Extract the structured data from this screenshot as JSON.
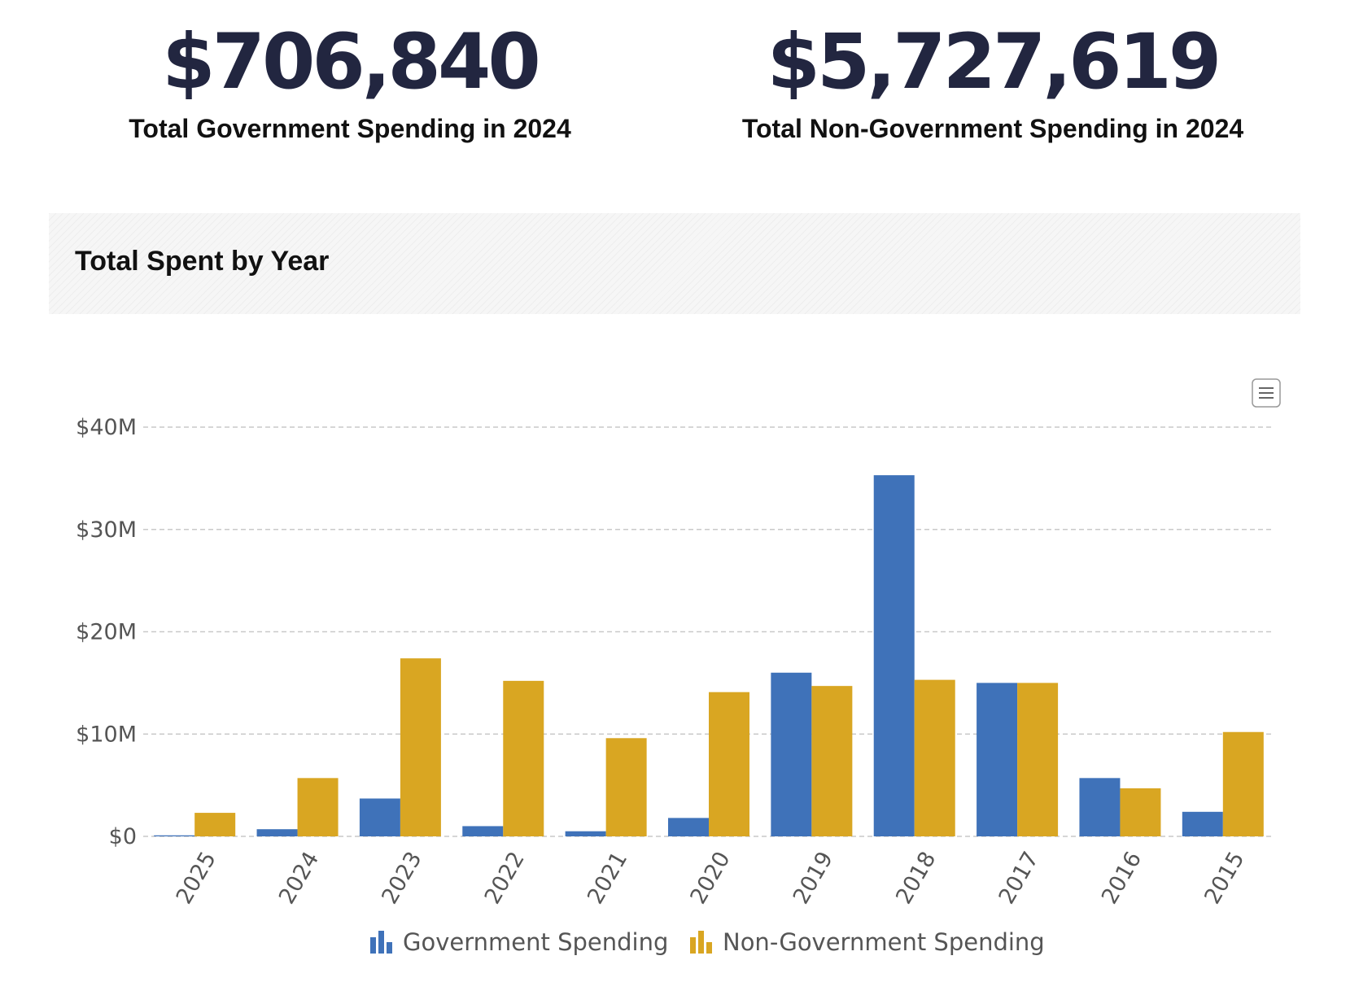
{
  "stats": {
    "government": {
      "value": "$706,840",
      "label": "Total Government Spending in 2024"
    },
    "non_government": {
      "value": "$5,727,619",
      "label": "Total Non-Government Spending in 2024"
    }
  },
  "panel": {
    "title": "Total Spent by Year",
    "menu_icon": "hamburger-menu-icon"
  },
  "colors": {
    "government": "#3F72B9",
    "non_government": "#D9A622",
    "axis_text": "#555555",
    "grid": "#c9c9c9"
  },
  "chart_data": {
    "type": "bar",
    "title": "Total Spent by Year",
    "xlabel": "",
    "ylabel": "",
    "categories": [
      "2025",
      "2024",
      "2023",
      "2022",
      "2021",
      "2020",
      "2019",
      "2018",
      "2017",
      "2016",
      "2015"
    ],
    "series": [
      {
        "name": "Government Spending",
        "values": [
          0.1,
          0.7,
          3.7,
          1.0,
          0.5,
          1.8,
          16.0,
          35.3,
          15.0,
          5.7,
          2.4
        ]
      },
      {
        "name": "Non-Government Spending",
        "values": [
          2.3,
          5.7,
          17.4,
          15.2,
          9.6,
          14.1,
          14.7,
          15.3,
          15.0,
          4.7,
          10.2
        ]
      }
    ],
    "ylim": [
      0,
      40
    ],
    "yticks": [
      0,
      10,
      20,
      30,
      40
    ],
    "ytick_labels": [
      "$0",
      "$10M",
      "$20M",
      "$30M",
      "$40M"
    ],
    "units": "million USD",
    "grid": true,
    "legend": "bottom-center"
  }
}
